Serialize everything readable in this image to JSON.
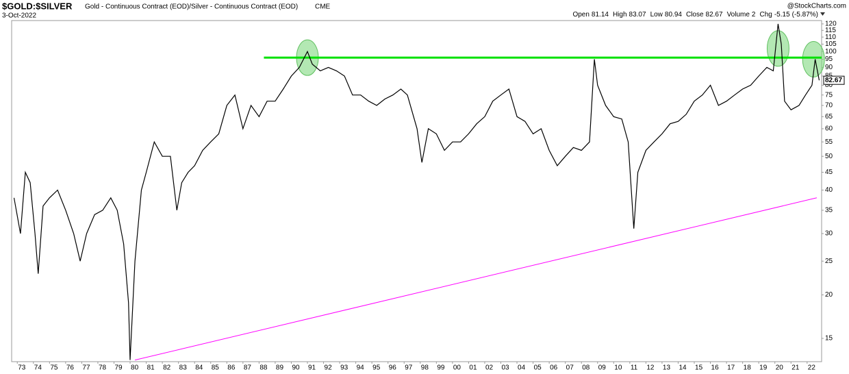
{
  "chart_data": {
    "type": "line",
    "title": "$GOLD:$SILVER",
    "subtitle": "Gold - Continuous Contract (EOD)/Silver - Continuous Contract (EOD)",
    "exchange": "CME",
    "date": "3-Oct-2022",
    "brand": "@StockCharts.com",
    "quote": [
      {
        "label": "Open",
        "value": 81.14
      },
      {
        "label": "High",
        "value": 83.07
      },
      {
        "label": "Low",
        "value": 80.94
      },
      {
        "label": "Close",
        "value": 82.67
      },
      {
        "label": "Volume",
        "value": 2
      },
      {
        "label": "Chg",
        "value": -5.15
      }
    ],
    "change_percent": "(-5.87%)",
    "last_price": 82.67,
    "log_scale": true,
    "grid": false,
    "xlim": [
      1972.65,
      2022.9
    ],
    "ylim": [
      12.86,
      122.7
    ],
    "xticks": [
      {
        "value": 1973,
        "label": "73"
      },
      {
        "value": 1974,
        "label": "74"
      },
      {
        "value": 1975,
        "label": "75"
      },
      {
        "value": 1976,
        "label": "76"
      },
      {
        "value": 1977,
        "label": "77"
      },
      {
        "value": 1978,
        "label": "78"
      },
      {
        "value": 1979,
        "label": "79"
      },
      {
        "value": 1980,
        "label": "80"
      },
      {
        "value": 1981,
        "label": "81"
      },
      {
        "value": 1982,
        "label": "82"
      },
      {
        "value": 1983,
        "label": "83"
      },
      {
        "value": 1984,
        "label": "84"
      },
      {
        "value": 1985,
        "label": "85"
      },
      {
        "value": 1986,
        "label": "86"
      },
      {
        "value": 1987,
        "label": "87"
      },
      {
        "value": 1988,
        "label": "88"
      },
      {
        "value": 1989,
        "label": "89"
      },
      {
        "value": 1990,
        "label": "90"
      },
      {
        "value": 1991,
        "label": "91"
      },
      {
        "value": 1992,
        "label": "92"
      },
      {
        "value": 1993,
        "label": "93"
      },
      {
        "value": 1994,
        "label": "94"
      },
      {
        "value": 1995,
        "label": "95"
      },
      {
        "value": 1996,
        "label": "96"
      },
      {
        "value": 1997,
        "label": "97"
      },
      {
        "value": 1998,
        "label": "98"
      },
      {
        "value": 1999,
        "label": "99"
      },
      {
        "value": 2000,
        "label": "00"
      },
      {
        "value": 2001,
        "label": "01"
      },
      {
        "value": 2002,
        "label": "02"
      },
      {
        "value": 2003,
        "label": "03"
      },
      {
        "value": 2004,
        "label": "04"
      },
      {
        "value": 2005,
        "label": "05"
      },
      {
        "value": 2006,
        "label": "06"
      },
      {
        "value": 2007,
        "label": "07"
      },
      {
        "value": 2008,
        "label": "08"
      },
      {
        "value": 2009,
        "label": "09"
      },
      {
        "value": 2010,
        "label": "10"
      },
      {
        "value": 2011,
        "label": "11"
      },
      {
        "value": 2012,
        "label": "12"
      },
      {
        "value": 2013,
        "label": "13"
      },
      {
        "value": 2014,
        "label": "14"
      },
      {
        "value": 2015,
        "label": "15"
      },
      {
        "value": 2016,
        "label": "16"
      },
      {
        "value": 2017,
        "label": "17"
      },
      {
        "value": 2018,
        "label": "18"
      },
      {
        "value": 2019,
        "label": "19"
      },
      {
        "value": 2020,
        "label": "20"
      },
      {
        "value": 2021,
        "label": "21"
      },
      {
        "value": 2022,
        "label": "22"
      }
    ],
    "yticks": [
      15,
      20,
      25,
      30,
      35,
      40,
      45,
      50,
      55,
      60,
      65,
      70,
      75,
      80,
      85,
      90,
      95,
      100,
      105,
      110,
      115,
      120
    ],
    "series": [
      {
        "name": "$GOLD:$SILVER",
        "color": "#000000",
        "x": [
          1972.8,
          1973.2,
          1973.5,
          1973.8,
          1974.1,
          1974.3,
          1974.6,
          1975.0,
          1975.5,
          1976.0,
          1976.5,
          1976.9,
          1977.3,
          1977.8,
          1978.3,
          1978.8,
          1979.2,
          1979.6,
          1979.9,
          1980.0,
          1980.3,
          1980.7,
          1981.0,
          1981.5,
          1982.0,
          1982.5,
          1982.9,
          1983.2,
          1983.6,
          1984.0,
          1984.5,
          1985.0,
          1985.5,
          1986.0,
          1986.5,
          1987.0,
          1987.5,
          1988.0,
          1988.5,
          1989.0,
          1989.5,
          1990.0,
          1990.5,
          1991.0,
          1991.3,
          1991.8,
          1992.3,
          1992.8,
          1993.3,
          1993.8,
          1994.3,
          1994.8,
          1995.3,
          1995.8,
          1996.3,
          1996.8,
          1997.2,
          1997.8,
          1998.1,
          1998.5,
          1999.0,
          1999.5,
          2000.0,
          2000.5,
          2001.0,
          2001.5,
          2002.0,
          2002.5,
          2003.0,
          2003.5,
          2004.0,
          2004.5,
          2005.0,
          2005.5,
          2006.0,
          2006.5,
          2007.0,
          2007.5,
          2008.0,
          2008.5,
          2008.8,
          2009.0,
          2009.5,
          2010.0,
          2010.5,
          2010.9,
          2011.25,
          2011.5,
          2012.0,
          2012.5,
          2013.0,
          2013.5,
          2014.0,
          2014.5,
          2015.0,
          2015.5,
          2016.0,
          2016.5,
          2017.0,
          2017.5,
          2018.0,
          2018.5,
          2019.0,
          2019.5,
          2019.9,
          2020.2,
          2020.4,
          2020.6,
          2021.0,
          2021.5,
          2021.9,
          2022.3,
          2022.5,
          2022.75
        ],
        "values": [
          38,
          30,
          45,
          42,
          30,
          23,
          36,
          38,
          40,
          35,
          30,
          25,
          30,
          34,
          35,
          38,
          35,
          28,
          19,
          13,
          25,
          40,
          45,
          55,
          50,
          50,
          35,
          42,
          45,
          47,
          52,
          55,
          58,
          70,
          75,
          60,
          70,
          65,
          72,
          72,
          78,
          85,
          90,
          100,
          92,
          88,
          90,
          88,
          85,
          75,
          75,
          72,
          70,
          73,
          75,
          78,
          75,
          60,
          48,
          60,
          58,
          52,
          55,
          55,
          58,
          62,
          65,
          72,
          75,
          78,
          65,
          63,
          58,
          60,
          52,
          47,
          50,
          53,
          52,
          55,
          95,
          80,
          70,
          65,
          64,
          55,
          31,
          45,
          52,
          55,
          58,
          62,
          63,
          66,
          72,
          75,
          80,
          70,
          72,
          75,
          78,
          80,
          85,
          90,
          88,
          120,
          105,
          72,
          68,
          70,
          75,
          80,
          95,
          82.67
        ]
      }
    ],
    "resistance": {
      "value": 96,
      "x": [
        1988.3,
        2022.9
      ],
      "color": "#00e000"
    },
    "trendline": {
      "x": [
        1980.3,
        2022.6
      ],
      "values": [
        13,
        38
      ],
      "color": "#ff00ff"
    },
    "highlights": {
      "x": [
        1991.0,
        2020.2,
        2022.4
      ],
      "values": [
        96,
        102,
        95
      ],
      "color": "#80d880"
    }
  }
}
